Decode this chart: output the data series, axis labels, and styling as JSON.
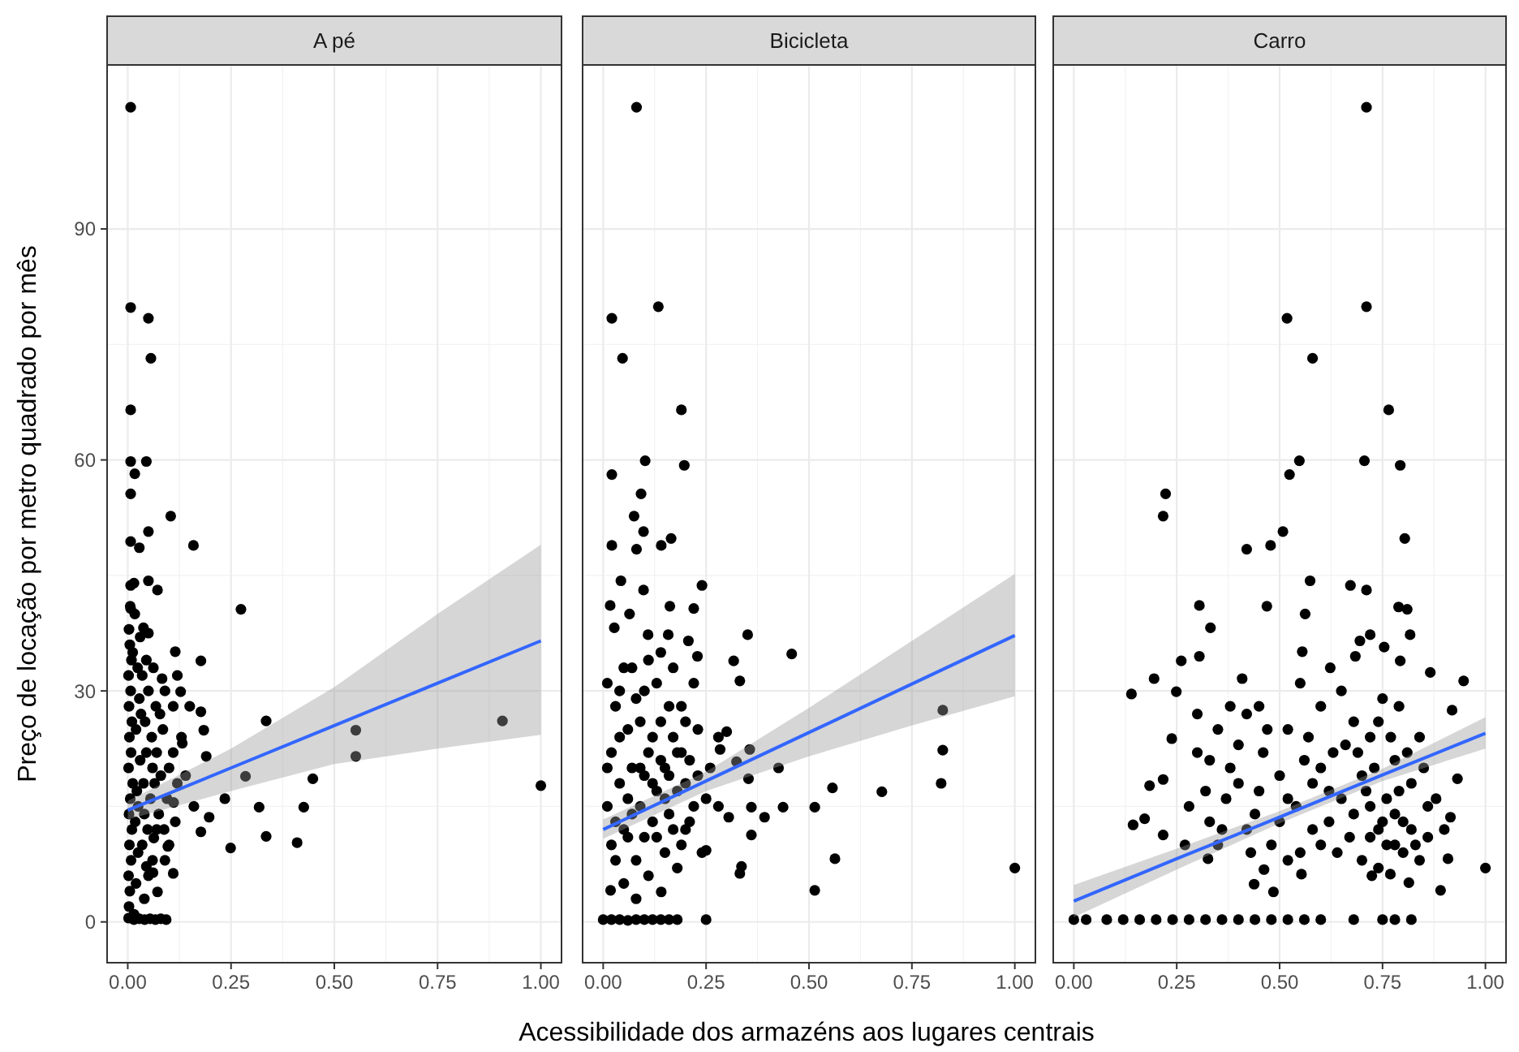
{
  "chart_data": [
    {
      "type": "scatter",
      "title": "A pé",
      "ylabel": "Preço de locação por metro quadrado por mês",
      "xlim": [
        -0.05,
        1.05
      ],
      "ylim": [
        -5.3,
        111.3
      ],
      "xticks": [
        {
          "value": 0,
          "label": "0.00"
        },
        {
          "value": 0.25,
          "label": "0.25"
        },
        {
          "value": 0.5,
          "label": "0.50"
        },
        {
          "value": 0.75,
          "label": "0.75"
        },
        {
          "value": 1,
          "label": "1.00"
        }
      ],
      "yticks": [
        0,
        30,
        60,
        90
      ],
      "grid": true,
      "series": [
        {
          "color": "#000000",
          "marker": "circle",
          "x": [
            0.007,
            0.007,
            0.05,
            0.056,
            0.007,
            0.007,
            0.045,
            0.017,
            0.007,
            0.104,
            0.05,
            0.007,
            0.028,
            0.159,
            0.007,
            0.05,
            0.072,
            0.274,
            0.007,
            0.038,
            0.05,
            0.115,
            0.177,
            0.083,
            0.128,
            0.177,
            0.335,
            0.552,
            0.907,
            0.184,
            0.132,
            0.19,
            0.552,
            0.285,
            0.448,
            1.0,
            0.235,
            0.318,
            0.426,
            0.197,
            0.177,
            0.335,
            0.41,
            0.249,
            0.11,
            0.072,
            0.061,
            0.045,
            0.111,
            0.097,
            0.063,
            0.002,
            0.015,
            0.028,
            0.041,
            0.054,
            0.067,
            0.08,
            0.093,
            0.003,
            0.005,
            0.002,
            0.008,
            0.004,
            0.01,
            0.003,
            0.006,
            0.012,
            0.002,
            0.008,
            0.004,
            0.01,
            0.003,
            0.007,
            0.002,
            0.009,
            0.005,
            0.003,
            0.006,
            0.02,
            0.025,
            0.018,
            0.022,
            0.03,
            0.02,
            0.028,
            0.024,
            0.03,
            0.015,
            0.035,
            0.04,
            0.038,
            0.045,
            0.042,
            0.05,
            0.035,
            0.048,
            0.055,
            0.06,
            0.058,
            0.065,
            0.07,
            0.075,
            0.08,
            0.085,
            0.068,
            0.09,
            0.1,
            0.095,
            0.11,
            0.12,
            0.13,
            0.06,
            0.07,
            0.05,
            0.04,
            0.015,
            0.025,
            0.032,
            0.012,
            0.017,
            0.045,
            0.062,
            0.078,
            0.088,
            0.1,
            0.115,
            0.14,
            0.16,
            0.09,
            0.11,
            0.12,
            0.15
          ],
          "values": [
            105.8,
            79.8,
            78.4,
            73.2,
            66.5,
            59.8,
            59.8,
            58.2,
            55.6,
            52.7,
            50.7,
            49.4,
            48.6,
            48.9,
            43.7,
            44.3,
            43.1,
            40.6,
            40.7,
            38.2,
            37.5,
            35.1,
            33.9,
            31.6,
            29.9,
            27.3,
            26.1,
            24.9,
            26.1,
            24.9,
            23.2,
            21.5,
            21.5,
            18.9,
            18.6,
            17.7,
            16,
            14.9,
            14.9,
            13.6,
            11.7,
            11.1,
            10.3,
            9.6,
            6.3,
            3.9,
            6.4,
            7.2,
            15.5,
            9.8,
            10.9,
            0.5,
            0.3,
            0.4,
            0.3,
            0.4,
            0.3,
            0.4,
            0.3,
            2,
            4,
            6,
            8,
            10,
            12,
            14,
            16,
            18,
            20,
            22,
            24,
            26,
            28,
            30,
            32,
            34,
            36,
            38,
            41,
            5,
            9,
            13,
            17,
            21,
            25,
            29,
            33,
            37,
            44,
            10,
            14,
            18,
            22,
            26,
            30,
            32,
            12,
            16,
            20,
            24,
            18,
            22,
            14,
            19,
            25,
            28,
            30,
            20,
            16,
            22,
            18,
            24,
            8,
            12,
            6,
            3,
            1,
            15,
            27,
            35,
            40,
            34,
            33,
            27,
            12,
            10,
            13,
            19,
            15,
            8,
            28,
            32,
            28
          ]
        },
        {
          "type": "line",
          "color": "#3366ff",
          "marker": "none",
          "x": [
            0,
            0.25,
            0.5,
            0.75,
            1
          ],
          "values": [
            14.5,
            20,
            25.5,
            31,
            36.5
          ],
          "lower": [
            13.3,
            17,
            20.5,
            22.5,
            24.3
          ],
          "upper": [
            15.7,
            22.5,
            30.5,
            40,
            49
          ]
        }
      ]
    },
    {
      "type": "scatter",
      "title": "Bicicleta",
      "xlabel": "Acessibilidade dos armazéns aos lugares centrais",
      "xlim": [
        -0.05,
        1.05
      ],
      "ylim": [
        -5.3,
        111.3
      ],
      "xticks": [
        {
          "value": 0,
          "label": "0.00"
        },
        {
          "value": 0.25,
          "label": "0.25"
        },
        {
          "value": 0.5,
          "label": "0.50"
        },
        {
          "value": 0.75,
          "label": "0.75"
        },
        {
          "value": 1,
          "label": "1.00"
        }
      ],
      "yticks": [
        0,
        30,
        60,
        90
      ],
      "grid": true,
      "tick_labels": "x",
      "series": [
        {
          "color": "#000000",
          "marker": "circle",
          "x": [
            0.081,
            0.021,
            0.134,
            0.047,
            0.19,
            0.102,
            0.197,
            0.021,
            0.092,
            0.075,
            0.098,
            0.021,
            0.081,
            0.141,
            0.165,
            0.043,
            0.24,
            0.098,
            0.017,
            0.162,
            0.22,
            0.064,
            0.027,
            0.109,
            0.351,
            0.158,
            0.207,
            0.458,
            0.229,
            0.317,
            0.332,
            0.3,
            0.284,
            0.825,
            0.825,
            0.821,
            0.677,
            0.557,
            0.514,
            0.437,
            0.36,
            0.392,
            0.36,
            0.336,
            0.332,
            0.563,
            0.514,
            1.0,
            0.141,
            0.018,
            0.25,
            0.305,
            0.353,
            0.426,
            0.356,
            0.324,
            0.0,
            0.02,
            0.04,
            0.06,
            0.08,
            0.1,
            0.12,
            0.14,
            0.16,
            0.18,
            0.25,
            0.01,
            0.02,
            0.03,
            0.01,
            0.04,
            0.05,
            0.06,
            0.07,
            0.08,
            0.09,
            0.1,
            0.11,
            0.12,
            0.13,
            0.14,
            0.15,
            0.16,
            0.17,
            0.18,
            0.19,
            0.2,
            0.21,
            0.22,
            0.23,
            0.24,
            0.03,
            0.05,
            0.07,
            0.09,
            0.11,
            0.13,
            0.15,
            0.17,
            0.19,
            0.02,
            0.04,
            0.06,
            0.08,
            0.1,
            0.12,
            0.14,
            0.16,
            0.18,
            0.2,
            0.22,
            0.05,
            0.08,
            0.12,
            0.15,
            0.1,
            0.07,
            0.03,
            0.11,
            0.18,
            0.21,
            0.13,
            0.06,
            0.09,
            0.16,
            0.2,
            0.23,
            0.01,
            0.04,
            0.14,
            0.17,
            0.19,
            0.25,
            0.26,
            0.28,
            0.28
          ],
          "values": [
            105.8,
            78.4,
            79.9,
            73.2,
            66.5,
            59.9,
            59.3,
            58.1,
            55.6,
            52.7,
            50.7,
            48.9,
            48.4,
            48.9,
            49.8,
            44.3,
            43.7,
            43.1,
            41.1,
            41,
            40.7,
            40,
            38.2,
            37.3,
            37.3,
            37.3,
            36.5,
            34.8,
            34.5,
            33.9,
            31.3,
            24.7,
            22.4,
            27.5,
            22.3,
            18,
            16.9,
            17.4,
            14.9,
            14.9,
            14.9,
            13.6,
            11.3,
            7.2,
            6.3,
            8.2,
            4.1,
            7,
            3.9,
            4.1,
            9.3,
            13.6,
            18.6,
            20,
            22.4,
            20.8,
            0.3,
            0.3,
            0.3,
            0.2,
            0.3,
            0.3,
            0.3,
            0.3,
            0.3,
            0.3,
            0.3,
            15,
            22,
            28,
            31,
            18,
            12,
            25,
            20,
            8,
            15,
            30,
            22,
            18,
            11,
            26,
            20,
            14,
            24,
            17,
            28,
            12,
            21,
            15,
            19,
            9,
            8,
            33,
            14,
            26,
            6,
            31,
            9,
            33,
            10,
            10,
            24,
            16,
            29,
            19,
            13,
            21,
            28,
            22,
            26,
            31,
            5,
            3,
            24,
            16,
            11,
            33,
            13,
            34,
            7,
            13,
            17,
            11,
            20,
            19,
            18,
            25,
            20,
            30,
            35,
            12,
            22,
            16,
            20,
            15,
            24
          ]
        },
        {
          "type": "line",
          "color": "#3366ff",
          "marker": "none",
          "x": [
            0,
            0.25,
            0.5,
            0.75,
            1
          ],
          "values": [
            12,
            18.3,
            24.6,
            30.9,
            37.2
          ],
          "lower": [
            10.8,
            17,
            21.5,
            25.5,
            29.3
          ],
          "upper": [
            13.3,
            19.5,
            27.8,
            36.5,
            45.2
          ]
        }
      ]
    },
    {
      "type": "scatter",
      "title": "Carro",
      "xlim": [
        -0.05,
        1.05
      ],
      "ylim": [
        -5.3,
        111.3
      ],
      "xticks": [
        {
          "value": 0,
          "label": "0.00"
        },
        {
          "value": 0.25,
          "label": "0.25"
        },
        {
          "value": 0.5,
          "label": "0.50"
        },
        {
          "value": 0.75,
          "label": "0.75"
        },
        {
          "value": 1,
          "label": "1.00"
        }
      ],
      "yticks": [
        0,
        30,
        60,
        90
      ],
      "grid": true,
      "tick_labels": "x",
      "series": [
        {
          "color": "#000000",
          "marker": "circle",
          "x": [
            0.711,
            0.711,
            0.518,
            0.58,
            0.765,
            0.548,
            0.706,
            0.524,
            0.793,
            0.223,
            0.217,
            0.804,
            0.508,
            0.42,
            0.478,
            0.574,
            0.672,
            0.711,
            0.305,
            0.469,
            0.789,
            0.81,
            0.562,
            0.332,
            0.72,
            0.817,
            0.695,
            0.261,
            0.305,
            0.754,
            0.555,
            0.684,
            0.793,
            0.866,
            0.947,
            0.195,
            0.14,
            0.249,
            0.409,
            0.623,
            0.919,
            1.0,
            0.891,
            0.909,
            0.915,
            0.932,
            0.144,
            0.172,
            0.217,
            0.238,
            0.184,
            0.217,
            0.438,
            0.485,
            0.462,
            0.553,
            0.724,
            0.769,
            0.814,
            0.326,
            0,
            0.03,
            0.08,
            0.12,
            0.16,
            0.2,
            0.24,
            0.28,
            0.32,
            0.36,
            0.4,
            0.44,
            0.48,
            0.52,
            0.56,
            0.6,
            0.68,
            0.75,
            0.78,
            0.82,
            0.28,
            0.3,
            0.32,
            0.35,
            0.36,
            0.38,
            0.4,
            0.42,
            0.44,
            0.46,
            0.48,
            0.5,
            0.52,
            0.54,
            0.56,
            0.58,
            0.6,
            0.62,
            0.64,
            0.66,
            0.68,
            0.7,
            0.72,
            0.74,
            0.76,
            0.78,
            0.8,
            0.82,
            0.84,
            0.86,
            0.7,
            0.72,
            0.74,
            0.76,
            0.78,
            0.8,
            0.82,
            0.65,
            0.67,
            0.69,
            0.71,
            0.73,
            0.75,
            0.77,
            0.79,
            0.81,
            0.83,
            0.62,
            0.6,
            0.58,
            0.55,
            0.5,
            0.45,
            0.4,
            0.37,
            0.33,
            0.3,
            0.45,
            0.55,
            0.65,
            0.75,
            0.85,
            0.88,
            0.9,
            0.52,
            0.43,
            0.35,
            0.27,
            0.47,
            0.57,
            0.63,
            0.68,
            0.72,
            0.79,
            0.6,
            0.52,
            0.42,
            0.38,
            0.33,
            0.78,
            0.74,
            0.84,
            0.86
          ],
          "values": [
            105.8,
            79.9,
            78.4,
            73.2,
            66.5,
            59.9,
            59.9,
            58.1,
            59.3,
            55.6,
            52.7,
            49.8,
            50.7,
            48.4,
            48.9,
            44.3,
            43.7,
            43.1,
            41.1,
            41,
            40.9,
            40.6,
            40,
            38.2,
            37.3,
            37.3,
            36.5,
            33.9,
            34.5,
            35.7,
            35.1,
            34.5,
            33.9,
            32.4,
            31.3,
            31.6,
            29.6,
            29.9,
            31.6,
            33,
            27.5,
            7,
            4.1,
            8.2,
            13.6,
            18.6,
            12.6,
            13.4,
            11.3,
            23.8,
            17.7,
            18.5,
            4.9,
            3.9,
            6.8,
            6.2,
            6,
            6.2,
            5.1,
            8.2,
            0.3,
            0.3,
            0.3,
            0.3,
            0.3,
            0.3,
            0.3,
            0.3,
            0.3,
            0.3,
            0.3,
            0.3,
            0.3,
            0.3,
            0.3,
            0.3,
            0.3,
            0.3,
            0.3,
            0.3,
            15,
            22,
            17,
            25,
            12,
            20,
            18,
            27,
            14,
            22,
            10,
            19,
            25,
            15,
            21,
            12,
            28,
            17,
            9,
            23,
            14,
            19,
            11,
            26,
            16,
            21,
            13,
            18,
            24,
            15,
            8,
            15,
            12,
            10,
            14,
            9,
            12,
            16,
            11,
            22,
            17,
            20,
            13,
            24,
            17,
            22,
            10,
            13,
            10,
            18,
            9,
            13,
            17,
            23,
            16,
            21,
            27,
            28,
            31,
            30,
            29,
            20,
            16,
            12,
            8,
            9,
            10,
            10,
            25,
            24,
            22,
            26,
            24,
            28,
            20,
            16,
            12,
            28,
            13,
            10,
            7,
            8,
            11
          ]
        },
        {
          "type": "line",
          "color": "#3366ff",
          "marker": "none",
          "x": [
            0,
            0.25,
            0.5,
            0.75,
            1
          ],
          "values": [
            2.7,
            8.2,
            13.6,
            19.1,
            24.5
          ],
          "lower": [
            0.6,
            6.8,
            12.8,
            18.3,
            22.5
          ],
          "upper": [
            4.8,
            9.5,
            14.4,
            19.9,
            26.6
          ]
        }
      ]
    }
  ]
}
